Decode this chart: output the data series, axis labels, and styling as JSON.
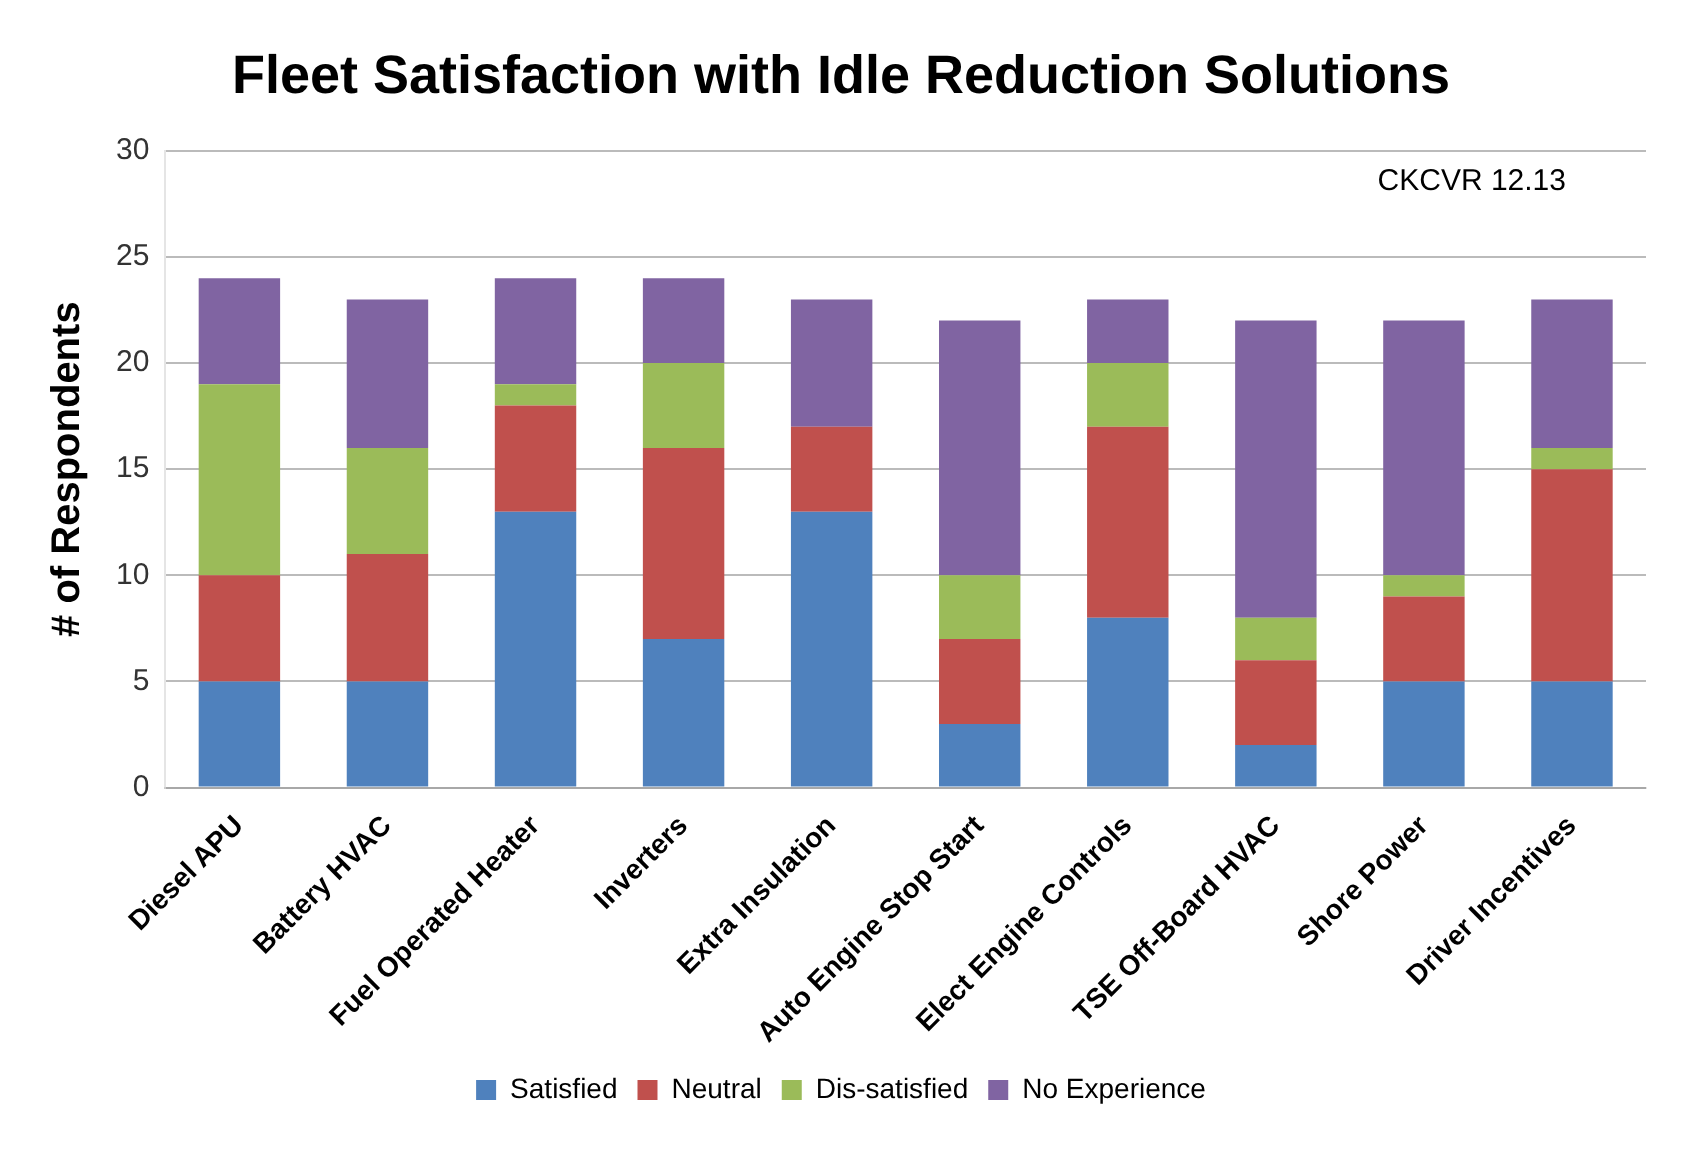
{
  "chart_data": {
    "type": "bar",
    "title": "Fleet Satisfaction with Idle Reduction Solutions",
    "ylabel": "# of Respondents",
    "annotations": [
      "CKCVR 12.13"
    ],
    "categories": [
      "Diesel APU",
      "Battery HVAC",
      "Fuel Operated Heater",
      "Inverters",
      "Extra Insulation",
      "Auto Engine Stop Start",
      "Elect Engine Controls",
      "TSE Off-Board HVAC",
      "Shore Power",
      "Driver Incentives"
    ],
    "series": [
      {
        "name": "Satisfied",
        "color": "#4f81bd",
        "values": [
          5,
          5,
          13,
          7,
          13,
          3,
          8,
          2,
          5,
          5
        ]
      },
      {
        "name": "Neutral",
        "color": "#c0504d",
        "values": [
          5,
          6,
          5,
          9,
          4,
          4,
          9,
          4,
          4,
          10
        ]
      },
      {
        "name": "Dis-satisfied",
        "color": "#9bbb59",
        "values": [
          9,
          5,
          1,
          4,
          0,
          3,
          3,
          2,
          1,
          1
        ]
      },
      {
        "name": "No Experience",
        "color": "#8064a2",
        "values": [
          5,
          7,
          5,
          4,
          6,
          12,
          3,
          14,
          12,
          7
        ]
      }
    ],
    "stacked": true,
    "ylim": [
      0,
      30
    ],
    "yticks": [
      0,
      5,
      10,
      15,
      20,
      25,
      30
    ],
    "grid": "y",
    "legend": "bottom"
  }
}
